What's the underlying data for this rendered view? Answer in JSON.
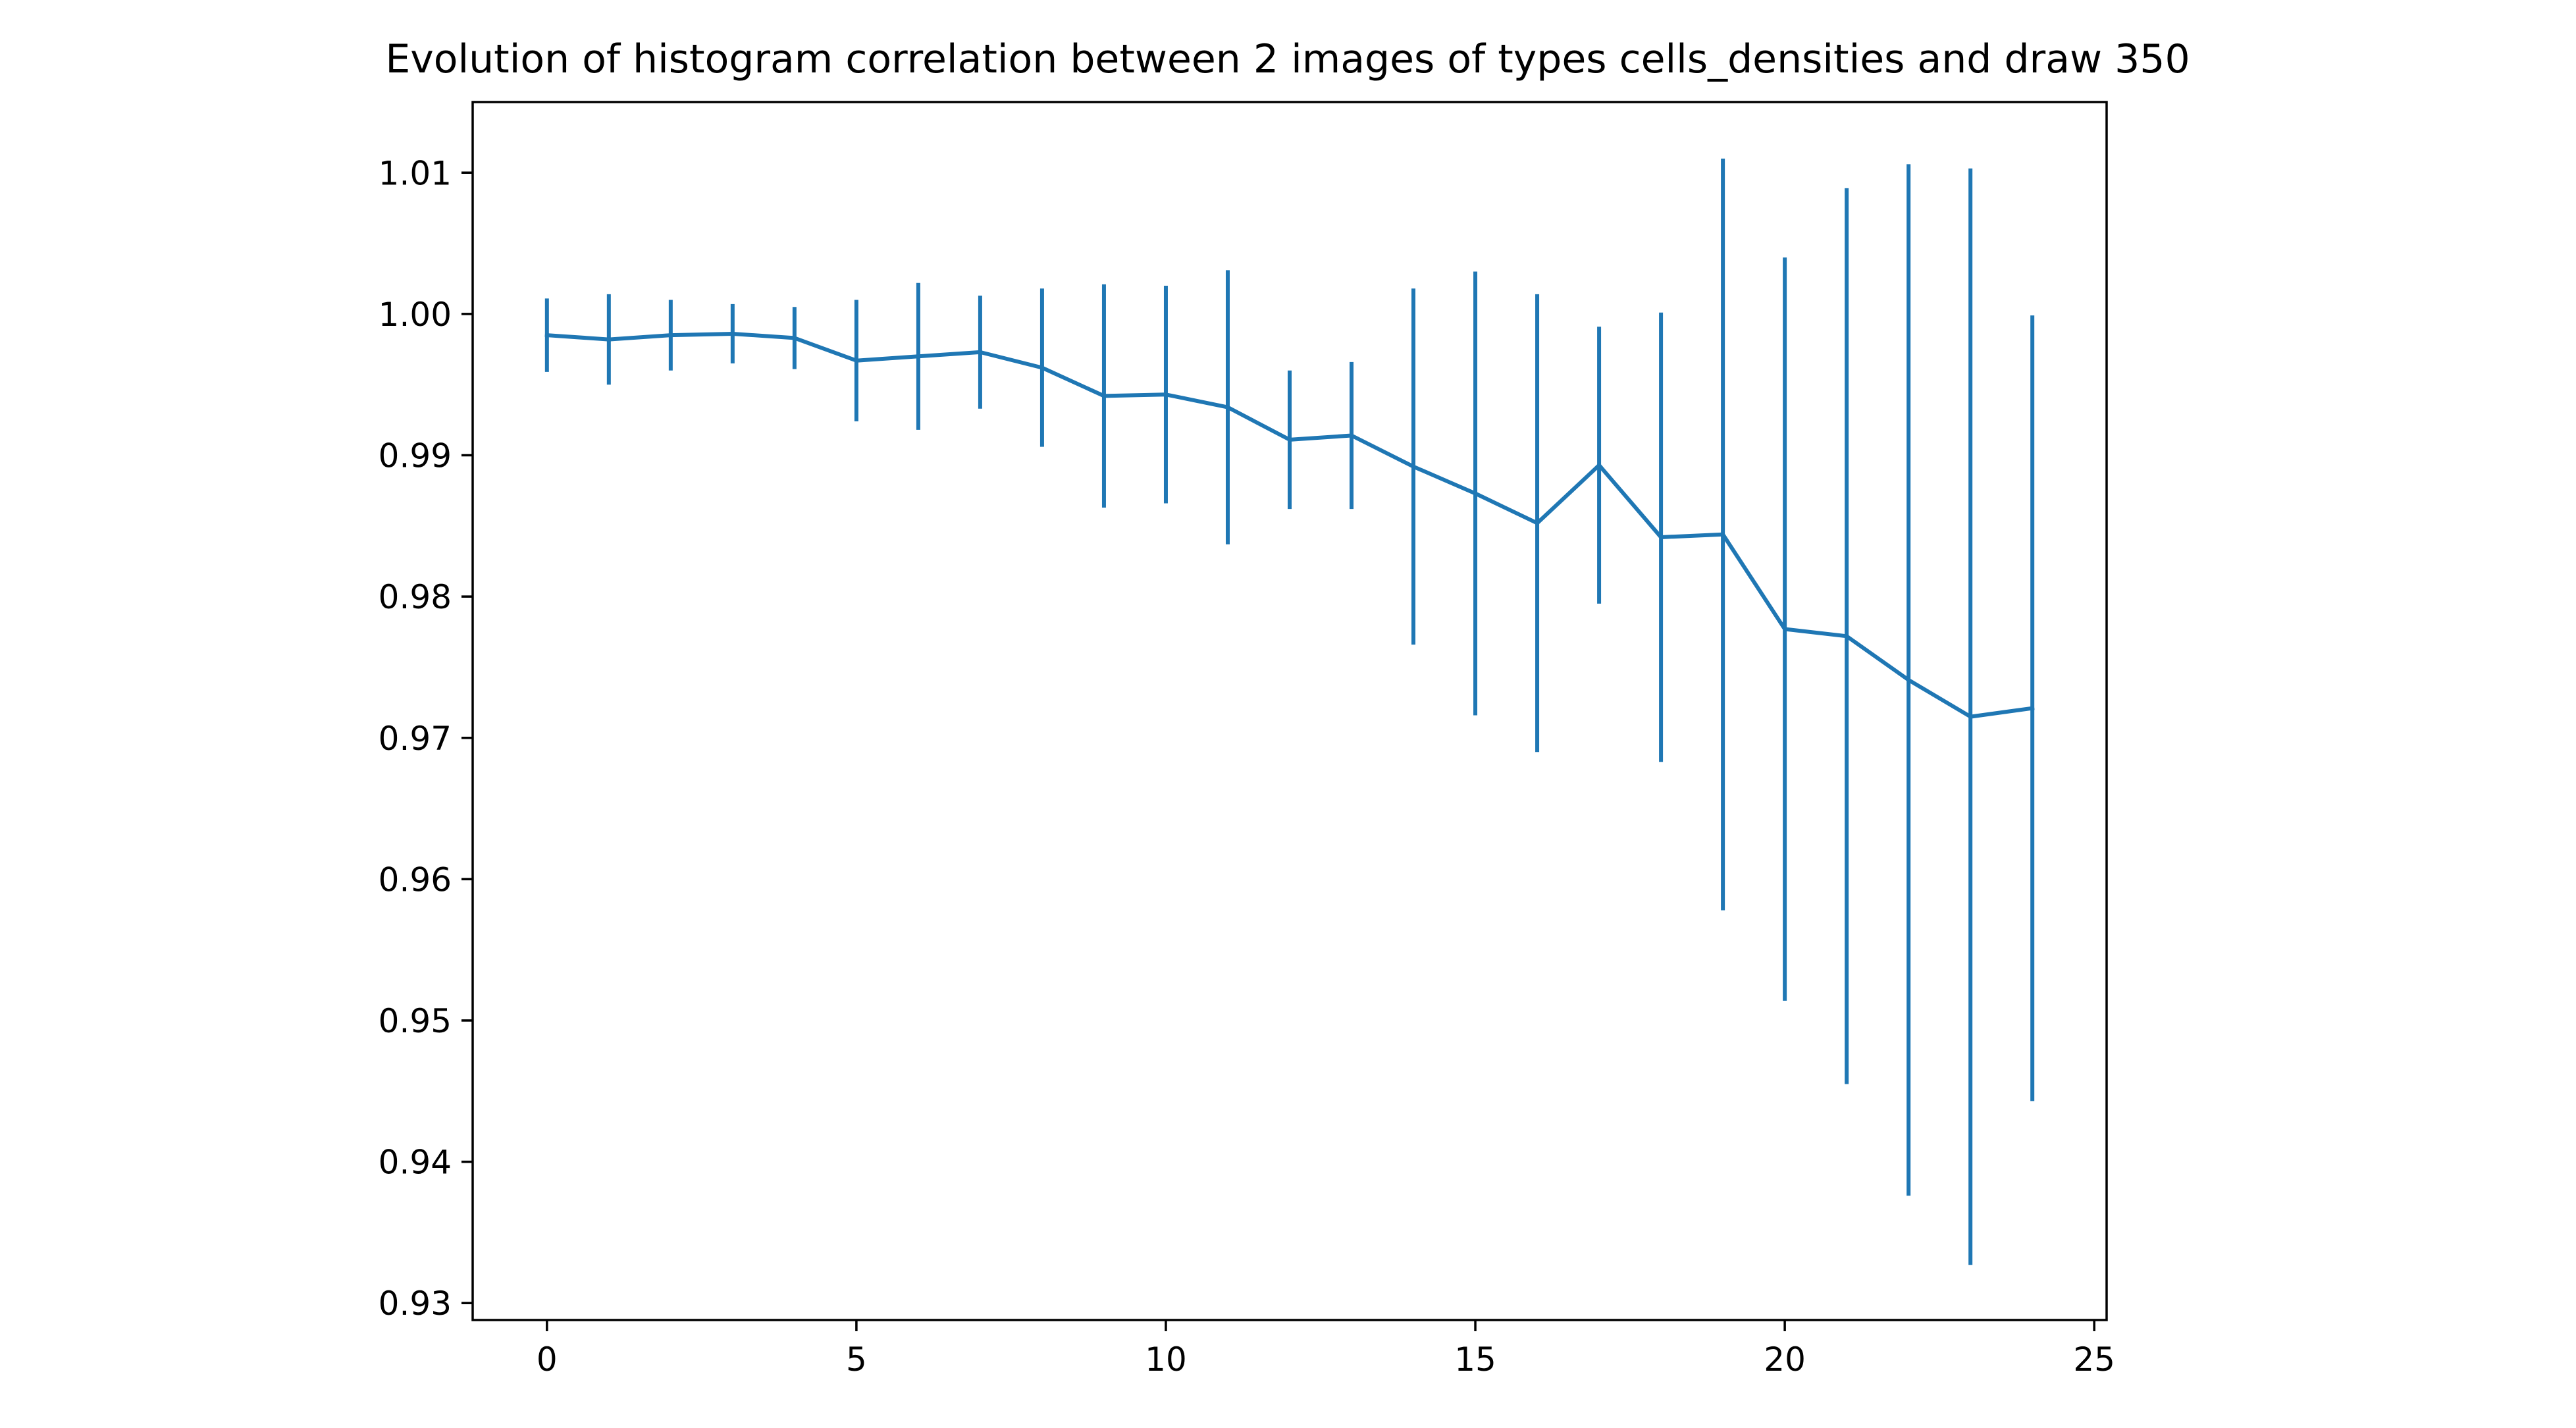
{
  "chart_data": {
    "type": "line",
    "title": "Evolution of histogram correlation between 2 images of types cells_densities and draw 350",
    "xlabel": "",
    "ylabel": "",
    "xlim": [
      -1.2,
      25.2
    ],
    "ylim": [
      0.9288,
      1.015
    ],
    "x_ticks": [
      0,
      5,
      10,
      15,
      20,
      25
    ],
    "y_ticks": [
      0.93,
      0.94,
      0.95,
      0.96,
      0.97,
      0.98,
      0.99,
      1.0,
      1.01
    ],
    "y_tick_labels": [
      "0.93",
      "0.94",
      "0.95",
      "0.96",
      "0.97",
      "0.98",
      "0.99",
      "1.00",
      "1.01"
    ],
    "grid": false,
    "legend": "none",
    "color": "#1f77b4",
    "series": [
      {
        "x": [
          0,
          1,
          2,
          3,
          4,
          5,
          6,
          7,
          8,
          9,
          10,
          11,
          12,
          13,
          14,
          15,
          16,
          17,
          18,
          19,
          20,
          21,
          22,
          23,
          24
        ],
        "y": [
          0.9985,
          0.9982,
          0.9985,
          0.9986,
          0.9983,
          0.9967,
          0.997,
          0.9973,
          0.9962,
          0.9942,
          0.9943,
          0.9934,
          0.9911,
          0.9914,
          0.9892,
          0.9873,
          0.9852,
          0.9893,
          0.9842,
          0.9844,
          0.9777,
          0.9772,
          0.9741,
          0.9715,
          0.9721
        ],
        "err": [
          0.0026,
          0.0032,
          0.0025,
          0.0021,
          0.0022,
          0.0043,
          0.0052,
          0.004,
          0.0056,
          0.0079,
          0.0077,
          0.0097,
          0.0049,
          0.0052,
          0.0126,
          0.0157,
          0.0162,
          0.0098,
          0.0159,
          0.0266,
          0.0263,
          0.0317,
          0.0365,
          0.0388,
          0.0278
        ]
      }
    ]
  }
}
